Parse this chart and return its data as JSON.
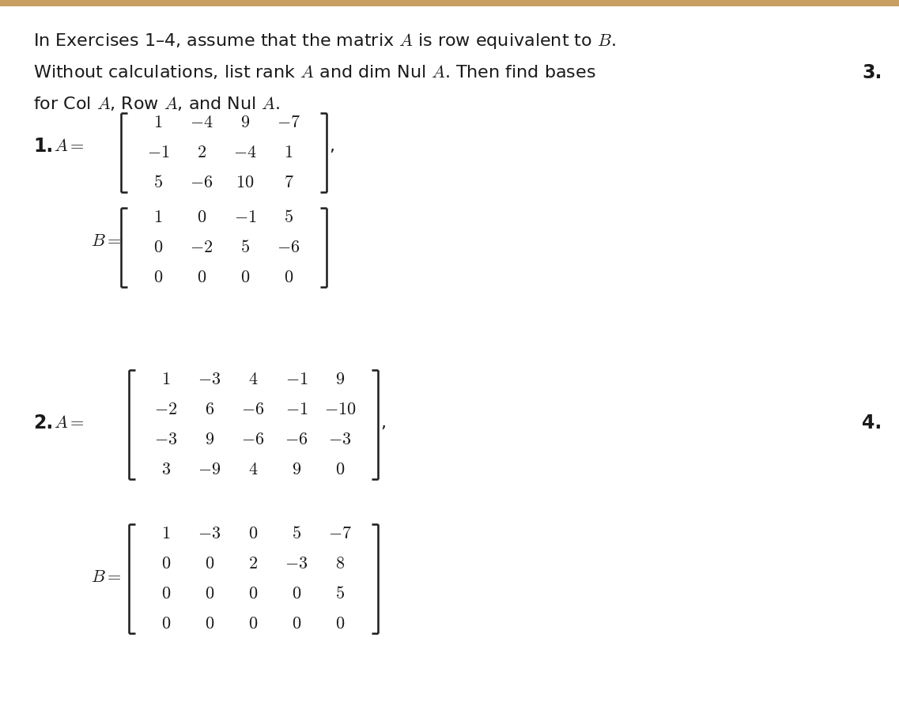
{
  "bg_color": "#ffffff",
  "top_bar_color": "#c8a064",
  "text_color": "#1a1a1a",
  "fig_width": 11.37,
  "fig_height": 9.17,
  "dpi": 100,
  "A1": [
    [
      "1",
      "-4",
      "9",
      "-7"
    ],
    [
      "-1",
      "2",
      "-4",
      "1"
    ],
    [
      "5",
      "-6",
      "10",
      "7"
    ]
  ],
  "B1": [
    [
      "1",
      "0",
      "-1",
      "5"
    ],
    [
      "0",
      "-2",
      "5",
      "-6"
    ],
    [
      "0",
      "0",
      "0",
      "0"
    ]
  ],
  "A2": [
    [
      "1",
      "-3",
      "4",
      "-1",
      "9"
    ],
    [
      "-2",
      "6",
      "-6",
      "-1",
      "-10"
    ],
    [
      "-3",
      "9",
      "-6",
      "-6",
      "-3"
    ],
    [
      "3",
      "-9",
      "4",
      "9",
      "0"
    ]
  ],
  "B2": [
    [
      "1",
      "-3",
      "0",
      "5",
      "-7"
    ],
    [
      "0",
      "0",
      "2",
      "-3",
      "8"
    ],
    [
      "0",
      "0",
      "0",
      "0",
      "5"
    ],
    [
      "0",
      "0",
      "0",
      "0",
      "0"
    ]
  ]
}
